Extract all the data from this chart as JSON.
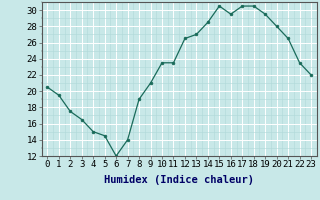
{
  "x": [
    0,
    1,
    2,
    3,
    4,
    5,
    6,
    7,
    8,
    9,
    10,
    11,
    12,
    13,
    14,
    15,
    16,
    17,
    18,
    19,
    20,
    21,
    22,
    23
  ],
  "y": [
    20.5,
    19.5,
    17.5,
    16.5,
    15.0,
    14.5,
    12.0,
    14.0,
    19.0,
    21.0,
    23.5,
    23.5,
    26.5,
    27.0,
    28.5,
    30.5,
    29.5,
    30.5,
    30.5,
    29.5,
    28.0,
    26.5,
    23.5,
    22.0
  ],
  "line_color": "#1a6b5a",
  "marker_color": "#1a6b5a",
  "bg_color": "#c8e8e8",
  "grid_major_color": "#ffffff",
  "grid_minor_color": "#b0d8d8",
  "xlabel": "Humidex (Indice chaleur)",
  "xlim": [
    -0.5,
    23.5
  ],
  "ylim": [
    12,
    31
  ],
  "yticks": [
    12,
    14,
    16,
    18,
    20,
    22,
    24,
    26,
    28,
    30
  ],
  "xticks": [
    0,
    1,
    2,
    3,
    4,
    5,
    6,
    7,
    8,
    9,
    10,
    11,
    12,
    13,
    14,
    15,
    16,
    17,
    18,
    19,
    20,
    21,
    22,
    23
  ],
  "xlabel_fontsize": 7.5,
  "tick_fontsize": 6.5
}
